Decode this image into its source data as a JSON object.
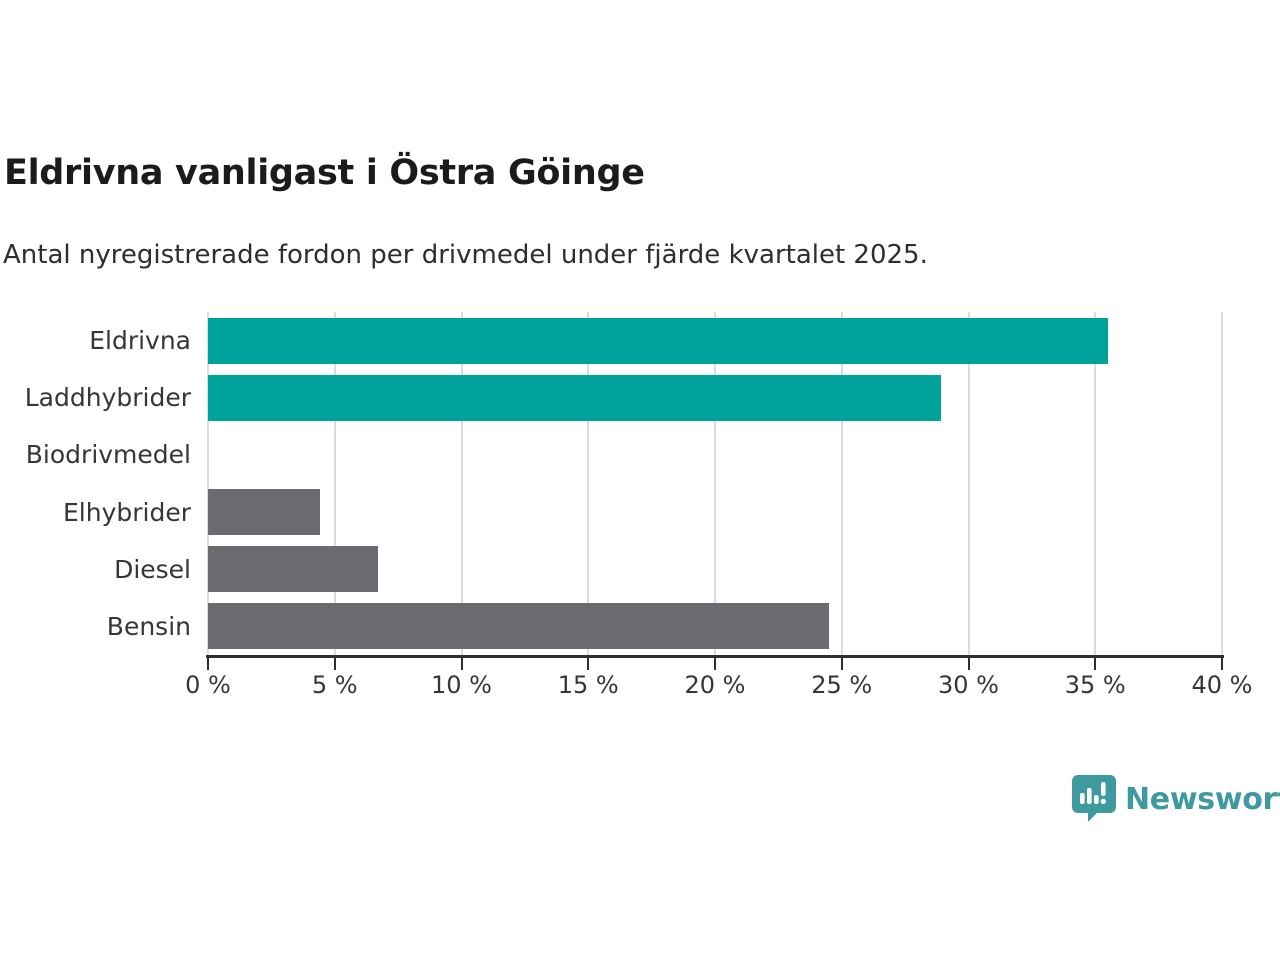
{
  "chart_data": {
    "type": "bar",
    "orientation": "horizontal",
    "title": "Eldrivna vanligast i Östra Göinge",
    "subtitle": "Antal nyregistrerade fordon per drivmedel under fjärde kvartalet 2025.",
    "categories": [
      "Eldrivna",
      "Laddhybrider",
      "Biodrivmedel",
      "Elhybrider",
      "Diesel",
      "Bensin"
    ],
    "values": [
      35.5,
      28.9,
      0,
      4.4,
      6.7,
      24.5
    ],
    "unit": "%",
    "xlim": [
      0,
      40
    ],
    "x_tick_values": [
      0,
      5,
      10,
      15,
      20,
      25,
      30,
      35,
      40
    ],
    "x_ticks": [
      "0 %",
      "5 %",
      "10 %",
      "15 %",
      "20 %",
      "25 %",
      "30 %",
      "35 %",
      "40 %"
    ],
    "grid": true,
    "legend": "none",
    "bar_colors": [
      "#00a39b",
      "#00a39b",
      "#00a39b",
      "#6b6a70",
      "#6b6a70",
      "#6b6a70"
    ]
  },
  "branding": {
    "logo_text": "Newsworthy",
    "logo_icon": "chart-speech-bubble-icon",
    "logo_color": "#3f9aa0"
  },
  "colors": {
    "accent_teal": "#00a39b",
    "neutral_gray": "#6b6a70",
    "gridline": "#dcdcdc",
    "axis": "#2f2f2f",
    "title_text": "#1b1b1b",
    "body_text": "#363636",
    "background": "#ffffff"
  }
}
